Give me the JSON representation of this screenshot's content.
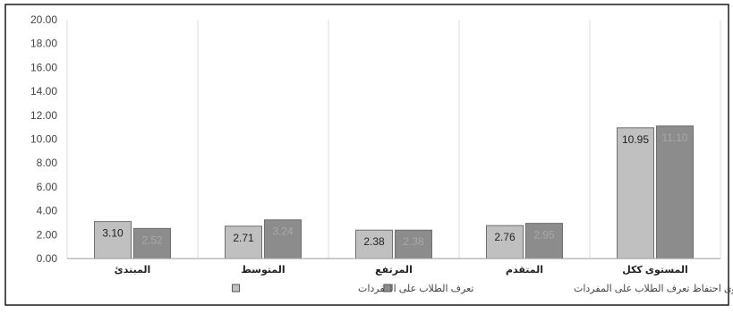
{
  "chart_data": {
    "type": "bar",
    "categories": [
      "المبتدئ",
      "المتوسط",
      "المرتفع",
      "المتقدم",
      "المستوى ككل"
    ],
    "series": [
      {
        "name": "تعرف الطلاب على المفردات",
        "values": [
          3.1,
          2.71,
          2.38,
          2.76,
          10.95
        ]
      },
      {
        "name": "مستوى احتفاظ تعرف الطلاب على المفردات",
        "values": [
          2.52,
          3.24,
          2.38,
          2.95,
          11.1
        ]
      }
    ],
    "data_labels": [
      [
        "3.10",
        "2.71",
        "2.38",
        "2.76",
        "10.95"
      ],
      [
        "2.52",
        "3.24",
        "2.38",
        "2.95",
        "11.10"
      ]
    ],
    "ylim": [
      0,
      20
    ],
    "ytick_labels": [
      "0.00",
      "2.00",
      "4.00",
      "6.00",
      "8.00",
      "10.00",
      "12.00",
      "14.00",
      "16.00",
      "18.00",
      "20.00"
    ],
    "grid": "vertical",
    "legend_position": "bottom",
    "colors": {
      "series1": "#c0c0c0",
      "series2": "#8c8c8c",
      "label1": "#222222",
      "label2": "#a8a8a8",
      "grid": "#dcdcdc"
    },
    "title": "",
    "xlabel": "",
    "ylabel": ""
  }
}
